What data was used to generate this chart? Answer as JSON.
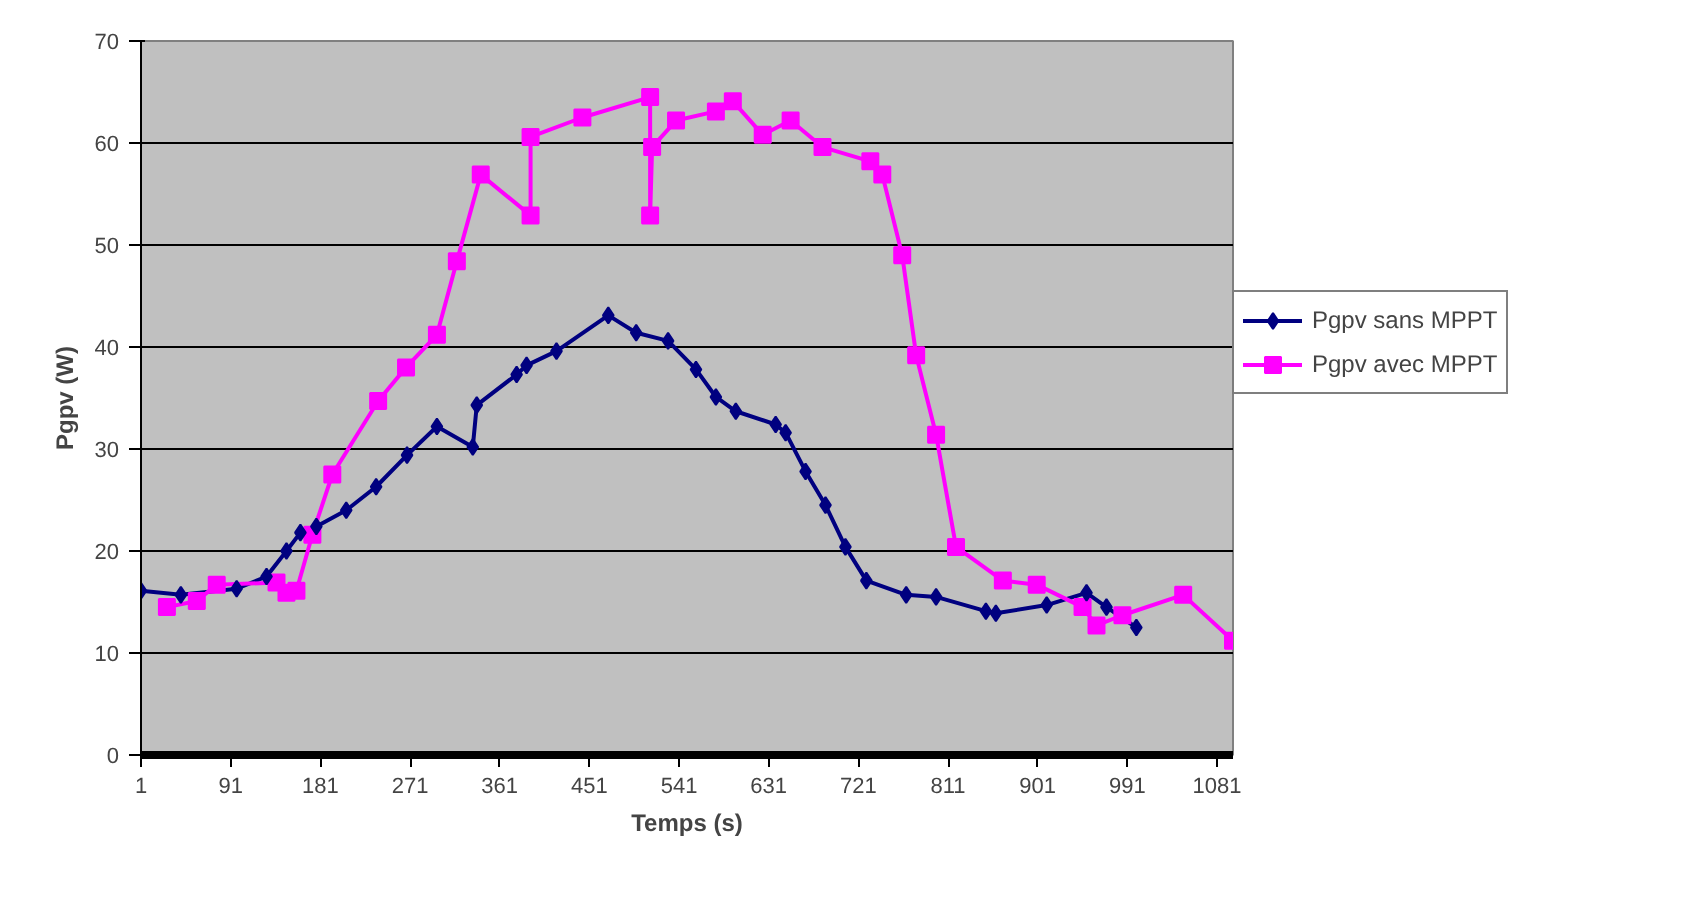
{
  "chart_data": {
    "type": "line",
    "xlabel": "Temps (s)",
    "ylabel": "Pgpv (W)",
    "xlim": [
      1,
      1097
    ],
    "xticks": [
      1,
      91,
      181,
      271,
      361,
      451,
      541,
      631,
      721,
      811,
      901,
      991,
      1081
    ],
    "ylim": [
      0,
      70
    ],
    "yticks": [
      0,
      10,
      20,
      30,
      40,
      50,
      60,
      70
    ],
    "grid": "y",
    "legend": "right",
    "series": [
      {
        "name": "Pgpv sans MPPT",
        "color": "#000080",
        "marker": "diamond",
        "x": [
          1,
          41,
          97,
          127,
          147,
          161,
          177,
          207,
          237,
          268,
          298,
          334,
          338,
          378,
          388,
          418,
          470,
          498,
          530,
          558,
          578,
          598,
          638,
          648,
          668,
          688,
          708,
          729,
          769,
          799,
          849,
          859,
          910,
          950,
          970,
          1000
        ],
        "values": [
          16.1,
          15.7,
          16.3,
          17.5,
          20,
          21.8,
          22.4,
          24,
          26.3,
          29.4,
          32.2,
          30.2,
          34.3,
          37.3,
          38.2,
          39.6,
          43.1,
          41.4,
          40.6,
          37.8,
          35.1,
          33.7,
          32.4,
          31.6,
          27.8,
          24.5,
          20.4,
          17.1,
          15.7,
          15.5,
          14.1,
          13.9,
          14.7,
          15.9,
          14.5,
          12.5
        ]
      },
      {
        "name": "Pgpv avec MPPT",
        "color": "#ff00ff",
        "marker": "square",
        "x": [
          27,
          57,
          77,
          137,
          147,
          157,
          173,
          193,
          239,
          267,
          298,
          318,
          342,
          392,
          392,
          444,
          512,
          512,
          514,
          538,
          578,
          595,
          625,
          653,
          685,
          733,
          745,
          765,
          779,
          799,
          819,
          866,
          900,
          946,
          960,
          986,
          1047,
          1097
        ],
        "values": [
          14.5,
          15.1,
          16.7,
          16.9,
          15.9,
          16.1,
          21.6,
          27.5,
          34.7,
          38,
          41.2,
          48.4,
          56.9,
          52.9,
          60.6,
          62.5,
          64.5,
          52.9,
          59.6,
          62.2,
          63.1,
          64.1,
          60.8,
          62.2,
          59.6,
          58.2,
          56.9,
          49,
          39.2,
          31.4,
          20.4,
          17.1,
          16.7,
          14.5,
          12.7,
          13.7,
          15.7,
          11.2
        ]
      }
    ]
  }
}
